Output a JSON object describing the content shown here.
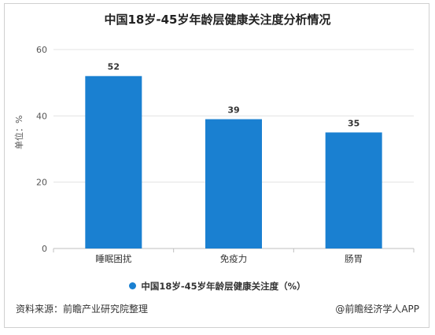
{
  "chart_data": {
    "type": "bar",
    "title": "中国18岁-45岁年龄层健康关注度分析情况",
    "ylabel": "单位：%",
    "categories": [
      "睡眠困扰",
      "免疫力",
      "肠胃"
    ],
    "series": [
      {
        "name": "中国18岁-45岁年龄层健康关注度（%）",
        "values": [
          52,
          39,
          35
        ]
      }
    ],
    "ylim": [
      0,
      60
    ],
    "yticks": [
      0,
      20,
      40,
      60
    ],
    "grid": true,
    "legend_position": "bottom",
    "bar_color": "#1a80d1"
  },
  "source_text": "资料来源：前瞻产业研究院整理",
  "credit_text": "@前瞻经济学人APP"
}
